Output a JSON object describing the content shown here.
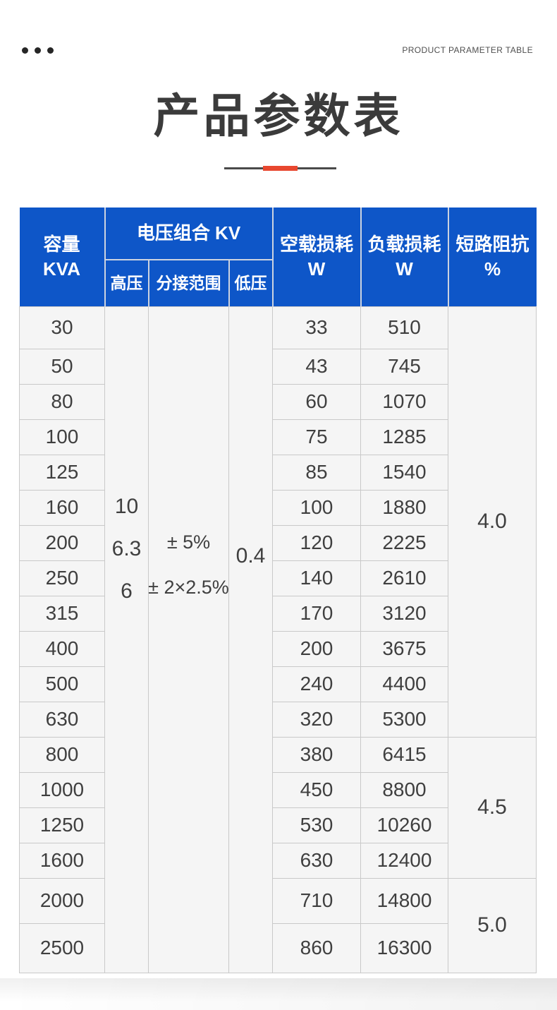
{
  "colors": {
    "header-blue": "#0e56c8",
    "accent-red": "#e8472f",
    "title-dark": "#3b3b3b",
    "body-bg": "#f5f5f5",
    "grid-line": "#c9c9c9"
  },
  "top_bar": {
    "eyebrow": "PRODUCT PARAMETER TABLE"
  },
  "title": "产品参数表",
  "table": {
    "header": {
      "capacity_line1": "容量",
      "capacity_line2": "KVA",
      "voltage_group": "电压组合 KV",
      "high_voltage": "高压",
      "tap_range": "分接范围",
      "low_voltage": "低压",
      "no_load_loss_line1": "空载损耗",
      "no_load_loss_line2": "W",
      "load_loss_line1": "负载损耗",
      "load_loss_line2": "W",
      "impedance_line1": "短路阻抗",
      "impedance_line2": "%"
    },
    "merged": {
      "high_voltage_values": [
        "10",
        "6.3",
        "6"
      ],
      "tap_range_values": [
        "± 5%",
        "± 2×2.5%"
      ],
      "low_voltage_value": "0.4"
    },
    "impedance_groups": [
      {
        "value": "4.0",
        "row_span": 12
      },
      {
        "value": "4.5",
        "row_span": 4
      },
      {
        "value": "5.0",
        "row_span": 2
      }
    ],
    "rows": [
      {
        "capacity": "30",
        "no_load_loss": "33",
        "load_loss": "510"
      },
      {
        "capacity": "50",
        "no_load_loss": "43",
        "load_loss": "745"
      },
      {
        "capacity": "80",
        "no_load_loss": "60",
        "load_loss": "1070"
      },
      {
        "capacity": "100",
        "no_load_loss": "75",
        "load_loss": "1285"
      },
      {
        "capacity": "125",
        "no_load_loss": "85",
        "load_loss": "1540"
      },
      {
        "capacity": "160",
        "no_load_loss": "100",
        "load_loss": "1880"
      },
      {
        "capacity": "200",
        "no_load_loss": "120",
        "load_loss": "2225"
      },
      {
        "capacity": "250",
        "no_load_loss": "140",
        "load_loss": "2610"
      },
      {
        "capacity": "315",
        "no_load_loss": "170",
        "load_loss": "3120"
      },
      {
        "capacity": "400",
        "no_load_loss": "200",
        "load_loss": "3675"
      },
      {
        "capacity": "500",
        "no_load_loss": "240",
        "load_loss": "4400"
      },
      {
        "capacity": "630",
        "no_load_loss": "320",
        "load_loss": "5300"
      },
      {
        "capacity": "800",
        "no_load_loss": "380",
        "load_loss": "6415"
      },
      {
        "capacity": "1000",
        "no_load_loss": "450",
        "load_loss": "8800"
      },
      {
        "capacity": "1250",
        "no_load_loss": "530",
        "load_loss": "10260"
      },
      {
        "capacity": "1600",
        "no_load_loss": "630",
        "load_loss": "12400"
      },
      {
        "capacity": "2000",
        "no_load_loss": "710",
        "load_loss": "14800"
      },
      {
        "capacity": "2500",
        "no_load_loss": "860",
        "load_loss": "16300"
      }
    ]
  }
}
